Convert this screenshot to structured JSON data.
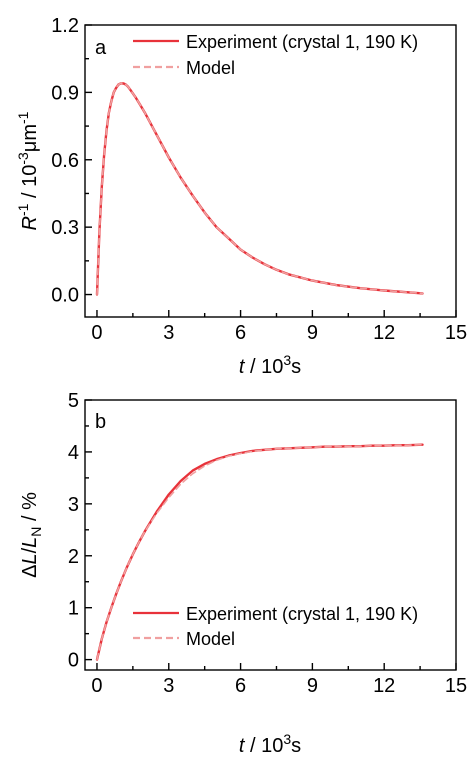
{
  "chart_data": [
    {
      "type": "line",
      "panel_label": "a",
      "xlabel": {
        "main": "t",
        "rest": " / 10",
        "sup": "3",
        "tail": "s"
      },
      "ylabel": {
        "main": "R",
        "sup1": "-1",
        "mid": " / 10",
        "sup2": "-3",
        "unit": "μm",
        "sup3": "-1"
      },
      "xlim": [
        -0.5,
        15
      ],
      "ylim": [
        -0.1,
        1.2
      ],
      "x_ticks": [
        "0",
        "3",
        "6",
        "9",
        "12",
        "15"
      ],
      "y_ticks": [
        "0.0",
        "0.3",
        "0.6",
        "0.9",
        "1.2"
      ],
      "legend_position": "top-right",
      "series": [
        {
          "name": "Experiment (crystal 1, 190 K)",
          "color": "#e8323a",
          "style": "solid",
          "x": [
            0,
            0.1,
            0.2,
            0.3,
            0.4,
            0.5,
            0.6,
            0.7,
            0.8,
            0.9,
            1.0,
            1.1,
            1.2,
            1.3,
            1.4,
            1.6,
            1.8,
            2.0,
            2.2,
            2.5,
            3.0,
            3.5,
            4.0,
            4.5,
            5.0,
            5.5,
            6.0,
            6.5,
            7.0,
            7.5,
            8.0,
            9.0,
            10.0,
            11.0,
            12.0,
            13.0,
            13.6
          ],
          "y": [
            0.0,
            0.28,
            0.48,
            0.62,
            0.73,
            0.81,
            0.86,
            0.9,
            0.92,
            0.935,
            0.94,
            0.94,
            0.935,
            0.925,
            0.91,
            0.88,
            0.845,
            0.81,
            0.77,
            0.71,
            0.61,
            0.52,
            0.44,
            0.365,
            0.3,
            0.25,
            0.2,
            0.165,
            0.135,
            0.11,
            0.09,
            0.062,
            0.042,
            0.028,
            0.018,
            0.01,
            0.005
          ]
        },
        {
          "name": "Model",
          "color": "#f0a0a0",
          "style": "dashed",
          "x": [
            0,
            0.1,
            0.2,
            0.3,
            0.4,
            0.5,
            0.6,
            0.7,
            0.8,
            0.9,
            1.0,
            1.1,
            1.2,
            1.3,
            1.4,
            1.6,
            1.8,
            2.0,
            2.2,
            2.5,
            3.0,
            3.5,
            4.0,
            4.5,
            5.0,
            5.5,
            6.0,
            6.5,
            7.0,
            7.5,
            8.0,
            9.0,
            10.0,
            11.0,
            12.0,
            13.0,
            13.6
          ],
          "y": [
            0.0,
            0.28,
            0.48,
            0.62,
            0.73,
            0.81,
            0.86,
            0.9,
            0.92,
            0.935,
            0.94,
            0.94,
            0.935,
            0.925,
            0.91,
            0.88,
            0.845,
            0.81,
            0.77,
            0.71,
            0.61,
            0.52,
            0.44,
            0.365,
            0.3,
            0.25,
            0.2,
            0.165,
            0.135,
            0.11,
            0.09,
            0.062,
            0.042,
            0.028,
            0.018,
            0.01,
            0.005
          ]
        }
      ]
    },
    {
      "type": "line",
      "panel_label": "b",
      "xlabel": {
        "main": "t",
        "rest": " / 10",
        "sup": "3",
        "tail": "s"
      },
      "ylabel": {
        "pre": "Δ",
        "main": "L",
        "mid": "/",
        "main2": "L",
        "sub": "N",
        "unit": " / %"
      },
      "xlim": [
        -0.5,
        15
      ],
      "ylim": [
        -0.2,
        5
      ],
      "x_ticks": [
        "0",
        "3",
        "6",
        "9",
        "12",
        "15"
      ],
      "y_ticks": [
        "0",
        "1",
        "2",
        "3",
        "4",
        "5"
      ],
      "legend_position": "bottom-right",
      "series": [
        {
          "name": "Experiment (crystal 1, 190 K)",
          "color": "#e8323a",
          "style": "solid",
          "x": [
            0,
            0.1,
            0.2,
            0.4,
            0.6,
            0.8,
            1.0,
            1.25,
            1.5,
            1.75,
            2.0,
            2.5,
            3.0,
            3.5,
            4.0,
            4.5,
            5.0,
            5.5,
            6.0,
            6.5,
            7.0,
            7.5,
            8.0,
            8.5,
            9.0,
            9.5,
            10.0,
            10.5,
            11.0,
            11.5,
            12.0,
            12.5,
            13.0,
            13.6
          ],
          "y": [
            0.0,
            0.2,
            0.4,
            0.72,
            1.0,
            1.26,
            1.5,
            1.78,
            2.03,
            2.26,
            2.47,
            2.85,
            3.18,
            3.44,
            3.64,
            3.77,
            3.86,
            3.93,
            3.98,
            4.02,
            4.04,
            4.06,
            4.07,
            4.08,
            4.09,
            4.1,
            4.1,
            4.11,
            4.11,
            4.12,
            4.12,
            4.13,
            4.13,
            4.14
          ]
        },
        {
          "name": "Model",
          "color": "#f0a0a0",
          "style": "dashed",
          "x": [
            0,
            0.1,
            0.2,
            0.4,
            0.6,
            0.8,
            1.0,
            1.25,
            1.5,
            1.75,
            2.0,
            2.5,
            3.0,
            3.5,
            4.0,
            4.5,
            5.0,
            5.5,
            6.0,
            6.5,
            7.0,
            7.5,
            8.0,
            8.5,
            9.0,
            9.5,
            10.0,
            10.5,
            11.0,
            11.5,
            12.0,
            12.5,
            13.0,
            13.6
          ],
          "y": [
            0.0,
            0.2,
            0.4,
            0.72,
            1.0,
            1.26,
            1.5,
            1.78,
            2.03,
            2.26,
            2.47,
            2.82,
            3.12,
            3.38,
            3.58,
            3.73,
            3.84,
            3.92,
            3.97,
            4.01,
            4.04,
            4.06,
            4.07,
            4.08,
            4.09,
            4.1,
            4.1,
            4.11,
            4.11,
            4.12,
            4.12,
            4.13,
            4.13,
            4.14
          ]
        }
      ]
    }
  ]
}
